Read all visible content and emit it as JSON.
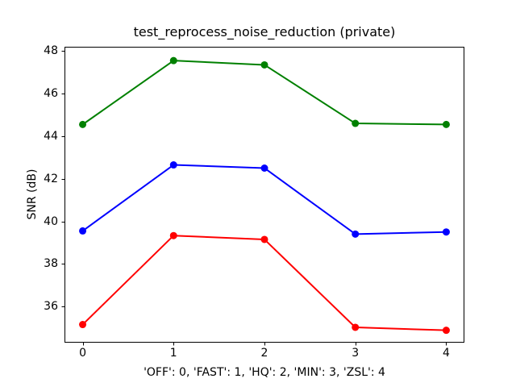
{
  "chart_data": {
    "type": "line",
    "title": "test_reprocess_noise_reduction (private)",
    "xlabel": "'OFF': 0, 'FAST': 1, 'HQ': 2, 'MIN': 3, 'ZSL': 4",
    "ylabel": "SNR (dB)",
    "x": [
      0,
      1,
      2,
      3,
      4
    ],
    "series": [
      {
        "name": "green",
        "color": "#008000",
        "values": [
          44.55,
          47.55,
          47.35,
          44.6,
          44.55
        ]
      },
      {
        "name": "blue",
        "color": "#0000ff",
        "values": [
          39.55,
          42.65,
          42.5,
          39.4,
          39.5
        ]
      },
      {
        "name": "red",
        "color": "#ff0000",
        "values": [
          35.15,
          39.33,
          39.15,
          35.02,
          34.88
        ]
      }
    ],
    "xticks": [
      "0",
      "1",
      "2",
      "3",
      "4"
    ],
    "yticks": [
      36,
      38,
      40,
      42,
      44,
      46,
      48
    ],
    "xlim": [
      -0.2,
      4.2
    ],
    "ylim": [
      34.3,
      48.2
    ],
    "grid": false,
    "legend": "none",
    "marker": "circle",
    "background": "#ffffff",
    "axis_color": "#000000"
  }
}
